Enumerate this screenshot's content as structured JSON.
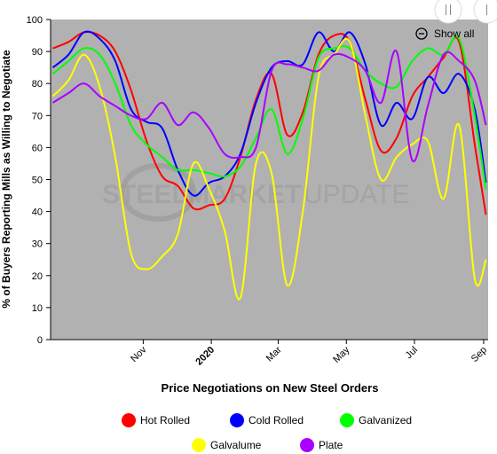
{
  "chart_data": {
    "type": "line",
    "title": "",
    "xlabel": "Price Negotiations on New Steel Orders",
    "ylabel": "% of Buyers Reporting Mills as Willing to Negotiate",
    "ylim": [
      0,
      100
    ],
    "yticks": [
      0,
      10,
      20,
      30,
      40,
      50,
      60,
      70,
      80,
      90,
      100
    ],
    "xlim": [
      "2019-08-10",
      "2020-09-05"
    ],
    "xticks": [
      {
        "date": "2019-11-01",
        "label": "Nov",
        "bold": false
      },
      {
        "date": "2020-01-01",
        "label": "2020",
        "bold": true
      },
      {
        "date": "2020-03-01",
        "label": "Mar",
        "bold": false
      },
      {
        "date": "2020-05-01",
        "label": "May",
        "bold": false
      },
      {
        "date": "2020-07-01",
        "label": "Jul",
        "bold": false
      },
      {
        "date": "2020-09-01",
        "label": "Sep",
        "bold": false
      }
    ],
    "grid": false,
    "legend_position": "bottom",
    "series": [
      {
        "name": "Hot Rolled",
        "color": "#ff0000",
        "points": [
          [
            "2019-08-12",
            91
          ],
          [
            "2019-08-26",
            93
          ],
          [
            "2019-09-09",
            96
          ],
          [
            "2019-09-23",
            95
          ],
          [
            "2019-10-07",
            90
          ],
          [
            "2019-10-21",
            78
          ],
          [
            "2019-11-04",
            62
          ],
          [
            "2019-11-18",
            51
          ],
          [
            "2019-12-02",
            48
          ],
          [
            "2019-12-16",
            41
          ],
          [
            "2019-12-30",
            42
          ],
          [
            "2020-01-13",
            44
          ],
          [
            "2020-01-27",
            57
          ],
          [
            "2020-02-10",
            75
          ],
          [
            "2020-02-24",
            83
          ],
          [
            "2020-03-09",
            64
          ],
          [
            "2020-03-23",
            71
          ],
          [
            "2020-04-06",
            89
          ],
          [
            "2020-04-20",
            95
          ],
          [
            "2020-05-04",
            93
          ],
          [
            "2020-05-18",
            75
          ],
          [
            "2020-06-01",
            59
          ],
          [
            "2020-06-15",
            63
          ],
          [
            "2020-06-29",
            76
          ],
          [
            "2020-07-13",
            82
          ],
          [
            "2020-07-27",
            88
          ],
          [
            "2020-08-10",
            93
          ],
          [
            "2020-08-24",
            61
          ],
          [
            "2020-09-03",
            39
          ]
        ]
      },
      {
        "name": "Cold Rolled",
        "color": "#0000ff",
        "points": [
          [
            "2019-08-12",
            85
          ],
          [
            "2019-08-26",
            89
          ],
          [
            "2019-09-09",
            96
          ],
          [
            "2019-09-23",
            94
          ],
          [
            "2019-10-07",
            87
          ],
          [
            "2019-10-21",
            72
          ],
          [
            "2019-11-04",
            68
          ],
          [
            "2019-11-18",
            66
          ],
          [
            "2019-12-02",
            53
          ],
          [
            "2019-12-16",
            45
          ],
          [
            "2019-12-30",
            49
          ],
          [
            "2020-01-13",
            51
          ],
          [
            "2020-01-27",
            58
          ],
          [
            "2020-02-10",
            74
          ],
          [
            "2020-02-24",
            85
          ],
          [
            "2020-03-09",
            87
          ],
          [
            "2020-03-23",
            86
          ],
          [
            "2020-04-06",
            96
          ],
          [
            "2020-04-20",
            90
          ],
          [
            "2020-05-04",
            96
          ],
          [
            "2020-05-18",
            86
          ],
          [
            "2020-06-01",
            67
          ],
          [
            "2020-06-15",
            74
          ],
          [
            "2020-06-29",
            69
          ],
          [
            "2020-07-13",
            82
          ],
          [
            "2020-07-27",
            77
          ],
          [
            "2020-08-10",
            83
          ],
          [
            "2020-08-24",
            72
          ],
          [
            "2020-09-03",
            49
          ]
        ]
      },
      {
        "name": "Galvanized",
        "color": "#00ff00",
        "points": [
          [
            "2019-08-12",
            83
          ],
          [
            "2019-08-26",
            87
          ],
          [
            "2019-09-09",
            91
          ],
          [
            "2019-09-23",
            89
          ],
          [
            "2019-10-07",
            80
          ],
          [
            "2019-10-21",
            67
          ],
          [
            "2019-11-04",
            61
          ],
          [
            "2019-11-18",
            57
          ],
          [
            "2019-12-02",
            53
          ],
          [
            "2019-12-16",
            53
          ],
          [
            "2019-12-30",
            52
          ],
          [
            "2020-01-13",
            51
          ],
          [
            "2020-01-27",
            54
          ],
          [
            "2020-02-10",
            63
          ],
          [
            "2020-02-24",
            72
          ],
          [
            "2020-03-09",
            58
          ],
          [
            "2020-03-23",
            69
          ],
          [
            "2020-04-06",
            88
          ],
          [
            "2020-04-20",
            91
          ],
          [
            "2020-05-04",
            91
          ],
          [
            "2020-05-18",
            84
          ],
          [
            "2020-06-01",
            80
          ],
          [
            "2020-06-15",
            79
          ],
          [
            "2020-06-29",
            87
          ],
          [
            "2020-07-13",
            91
          ],
          [
            "2020-07-27",
            89
          ],
          [
            "2020-08-10",
            94
          ],
          [
            "2020-08-24",
            70
          ],
          [
            "2020-09-03",
            47
          ]
        ]
      },
      {
        "name": "Galvalume",
        "color": "#ffff00",
        "points": [
          [
            "2019-08-12",
            76
          ],
          [
            "2019-08-26",
            81
          ],
          [
            "2019-09-09",
            89
          ],
          [
            "2019-09-23",
            79
          ],
          [
            "2019-10-07",
            57
          ],
          [
            "2019-10-21",
            27
          ],
          [
            "2019-11-04",
            22
          ],
          [
            "2019-11-18",
            26
          ],
          [
            "2019-12-02",
            33
          ],
          [
            "2019-12-16",
            55
          ],
          [
            "2019-12-30",
            47
          ],
          [
            "2020-01-13",
            34
          ],
          [
            "2020-01-27",
            13
          ],
          [
            "2020-02-10",
            55
          ],
          [
            "2020-02-24",
            52
          ],
          [
            "2020-03-09",
            17
          ],
          [
            "2020-03-23",
            40
          ],
          [
            "2020-04-06",
            82
          ],
          [
            "2020-04-20",
            89
          ],
          [
            "2020-05-04",
            93
          ],
          [
            "2020-05-18",
            70
          ],
          [
            "2020-06-01",
            50
          ],
          [
            "2020-06-15",
            57
          ],
          [
            "2020-06-29",
            61
          ],
          [
            "2020-07-13",
            62
          ],
          [
            "2020-07-27",
            44
          ],
          [
            "2020-08-10",
            67
          ],
          [
            "2020-08-24",
            19
          ],
          [
            "2020-09-03",
            25
          ]
        ]
      },
      {
        "name": "Plate",
        "color": "#aa00ff",
        "points": [
          [
            "2019-08-12",
            74
          ],
          [
            "2019-08-26",
            77
          ],
          [
            "2019-09-09",
            80
          ],
          [
            "2019-09-23",
            76
          ],
          [
            "2019-10-07",
            73
          ],
          [
            "2019-10-21",
            70
          ],
          [
            "2019-11-04",
            69
          ],
          [
            "2019-11-18",
            74
          ],
          [
            "2019-12-02",
            67
          ],
          [
            "2019-12-16",
            71
          ],
          [
            "2019-12-30",
            66
          ],
          [
            "2020-01-13",
            58
          ],
          [
            "2020-01-27",
            57
          ],
          [
            "2020-02-10",
            60
          ],
          [
            "2020-02-24",
            84
          ],
          [
            "2020-03-09",
            86
          ],
          [
            "2020-03-23",
            85
          ],
          [
            "2020-04-06",
            84
          ],
          [
            "2020-04-20",
            89
          ],
          [
            "2020-05-04",
            88
          ],
          [
            "2020-05-18",
            84
          ],
          [
            "2020-06-01",
            74
          ],
          [
            "2020-06-15",
            90
          ],
          [
            "2020-06-29",
            56
          ],
          [
            "2020-07-13",
            73
          ],
          [
            "2020-07-27",
            89
          ],
          [
            "2020-08-10",
            87
          ],
          [
            "2020-08-24",
            81
          ],
          [
            "2020-09-03",
            67
          ]
        ]
      }
    ]
  },
  "style": {
    "plot_background": "#b1b1b1",
    "page_background": "#ffffff"
  },
  "controls": {
    "show_all_label": "Show all",
    "show_all_icon": "zoom-out-icon",
    "pause_icon": "pause-icon"
  },
  "watermark": {
    "text_left": "STEEL",
    "text_mid": "MARKET",
    "text_right": "UPDATE"
  }
}
